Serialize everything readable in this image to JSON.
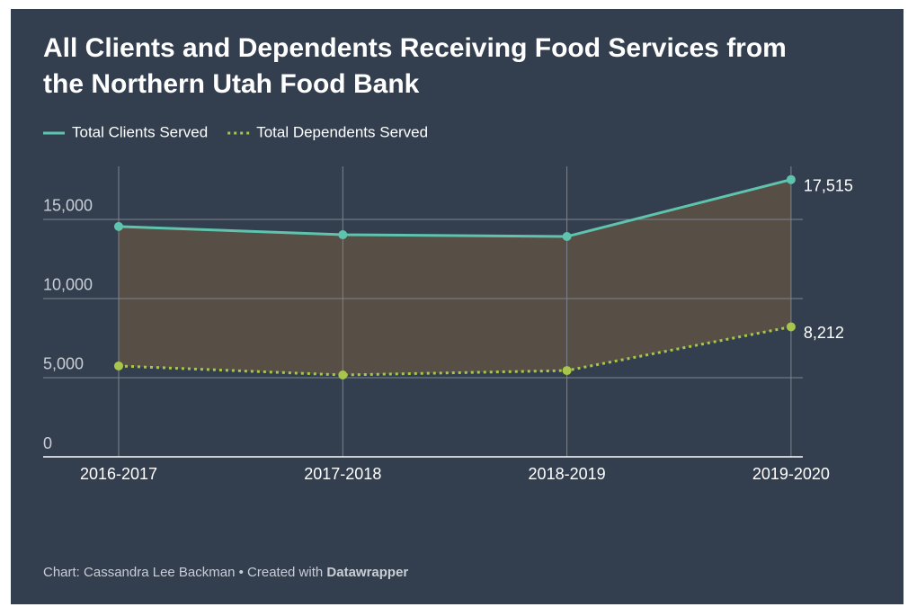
{
  "chart_data": {
    "type": "line",
    "title": [
      "All Clients and Dependents Receiving Food Services from",
      "the Northern Utah Food Bank"
    ],
    "categories": [
      "2016-2017",
      "2017-2018",
      "2018-2019",
      "2019-2020"
    ],
    "series": [
      {
        "name": "Total Clients Served",
        "color": "#5fc4ae",
        "style": "solid",
        "values": [
          14550,
          14030,
          13920,
          17515
        ],
        "value_labels": [
          null,
          null,
          null,
          "17,515"
        ]
      },
      {
        "name": "Total Dependents Served",
        "color": "#a8c64a",
        "style": "dotted",
        "values": [
          5740,
          5170,
          5450,
          8212
        ],
        "value_labels": [
          null,
          null,
          null,
          "8,212"
        ]
      }
    ],
    "area_color": "#574e45",
    "ylim": [
      0,
      18350
    ],
    "yticks": [
      0,
      {
        "value": 5000,
        "label": "5,000"
      },
      {
        "value": 10000,
        "label": "10,000"
      },
      {
        "value": 15000,
        "label": "15,000"
      }
    ],
    "grid": true,
    "legend": "top-left",
    "source": "Chart: Cassandra Lee Backman • Created with ",
    "credit": "Datawrapper"
  }
}
